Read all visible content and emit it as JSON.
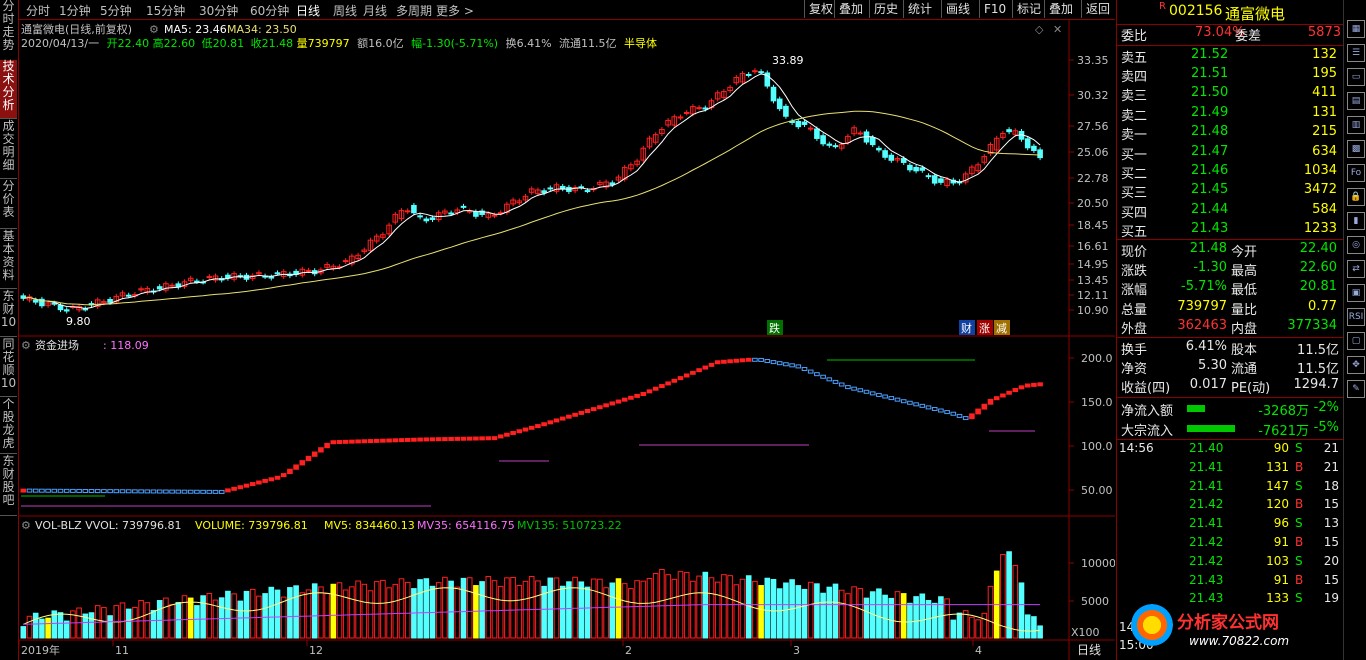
{
  "left_tabs": [
    "分时走势",
    "技术分析",
    "成交明细",
    "分价表",
    "基本资料",
    "东财10",
    "同花顺10",
    "个股龙虎",
    "东财股吧"
  ],
  "toolbar": {
    "periods": [
      "分时",
      "1分钟",
      "5分钟",
      "15分钟",
      "30分钟",
      "60分钟",
      "日线",
      "周线",
      "月线",
      "多周期",
      "更多 >"
    ],
    "selected": "日线",
    "right_buttons": [
      "复权",
      "叠加",
      "历史",
      "统计",
      "画线",
      "F10",
      "标记",
      "叠加",
      "返回"
    ]
  },
  "main_chart": {
    "title": "通富微电(日线,前复权)",
    "ma5": "MA5: 23.46",
    "ma34": "MA34: 23.50",
    "info_line": {
      "date": "2020/04/13/一",
      "open": "开22.40",
      "high": "高22.60",
      "low": "低20.81",
      "close": "收21.48",
      "volume": "量739797",
      "amount": "额16.0亿",
      "change": "幅-1.30(-5.71%)",
      "turnover": "换6.41%",
      "float": "流通11.5亿",
      "industry": "半导体"
    },
    "high_label": "33.89",
    "low_label": "9.80",
    "y_ticks": [
      "33.35",
      "30.32",
      "27.56",
      "25.06",
      "22.78",
      "20.50",
      "18.45",
      "16.61",
      "14.95",
      "13.45",
      "12.11",
      "10.90"
    ],
    "markers": [
      "跌",
      "财",
      "涨",
      "减"
    ]
  },
  "fund_chart": {
    "title": "资金进场",
    "value": ": 118.09",
    "y_ticks": [
      "200.0",
      "150.0",
      "100.0",
      "50.00"
    ]
  },
  "vol_chart": {
    "title": "VOL-BLZ VVOL: 739796.81",
    "volume": "VOLUME: 739796.81",
    "mv5": "MV5: 834460.13",
    "mv35": "MV35: 654116.75",
    "mv135": "MV135: 510723.22",
    "y_ticks": [
      "10000",
      "5000"
    ],
    "unit": "X100"
  },
  "x_axis": {
    "labels": [
      "2019年",
      "11",
      "12",
      "2",
      "3",
      "4"
    ],
    "period": "日线"
  },
  "quote": {
    "flag": "R",
    "code": "002156",
    "name": "通富微电",
    "weibi_label": "委比",
    "weibi": "73.04%",
    "weicha_label": "委差",
    "weicha": "5873",
    "sell": [
      {
        "label": "卖五",
        "price": "21.52",
        "vol": "132"
      },
      {
        "label": "卖四",
        "price": "21.51",
        "vol": "195"
      },
      {
        "label": "卖三",
        "price": "21.50",
        "vol": "411"
      },
      {
        "label": "卖二",
        "price": "21.49",
        "vol": "131"
      },
      {
        "label": "卖一",
        "price": "21.48",
        "vol": "215"
      }
    ],
    "buy": [
      {
        "label": "买一",
        "price": "21.47",
        "vol": "634"
      },
      {
        "label": "买二",
        "price": "21.46",
        "vol": "1034"
      },
      {
        "label": "买三",
        "price": "21.45",
        "vol": "3472"
      },
      {
        "label": "买四",
        "price": "21.44",
        "vol": "584"
      },
      {
        "label": "买五",
        "price": "21.43",
        "vol": "1233"
      }
    ],
    "stats": [
      {
        "l1": "现价",
        "v1": "21.48",
        "c1": "green",
        "l2": "今开",
        "v2": "22.40",
        "c2": "green"
      },
      {
        "l1": "涨跌",
        "v1": "-1.30",
        "c1": "green",
        "l2": "最高",
        "v2": "22.60",
        "c2": "green"
      },
      {
        "l1": "涨幅",
        "v1": "-5.71%",
        "c1": "green",
        "l2": "最低",
        "v2": "20.81",
        "c2": "green"
      },
      {
        "l1": "总量",
        "v1": "739797",
        "c1": "yellow",
        "l2": "量比",
        "v2": "0.77",
        "c2": "yellow"
      },
      {
        "l1": "外盘",
        "v1": "362463",
        "c1": "red",
        "l2": "内盘",
        "v2": "377334",
        "c2": "green"
      }
    ],
    "stats2": [
      {
        "l1": "换手",
        "v1": "6.41%",
        "c1": "white",
        "l2": "股本",
        "v2": "11.5亿",
        "c2": "white"
      },
      {
        "l1": "净资",
        "v1": "5.30",
        "c1": "white",
        "l2": "流通",
        "v2": "11.5亿",
        "c2": "white"
      },
      {
        "l1": "收益(四)",
        "v1": "0.017",
        "c1": "white",
        "l2": "PE(动)",
        "v2": "1294.7",
        "c2": "white"
      }
    ],
    "flows": [
      {
        "label": "净流入额",
        "value": "-3268万",
        "pct": "-2%"
      },
      {
        "label": "大宗流入",
        "value": "-7621万",
        "pct": "-5%"
      }
    ],
    "ticks": [
      {
        "time": "14:56",
        "price": "21.40",
        "vol": "90",
        "bs": "S",
        "n": "21"
      },
      {
        "time": "",
        "price": "21.41",
        "vol": "131",
        "bs": "B",
        "n": "21"
      },
      {
        "time": "",
        "price": "21.41",
        "vol": "147",
        "bs": "S",
        "n": "18"
      },
      {
        "time": "",
        "price": "21.42",
        "vol": "120",
        "bs": "B",
        "n": "15"
      },
      {
        "time": "",
        "price": "21.41",
        "vol": "96",
        "bs": "S",
        "n": "13"
      },
      {
        "time": "",
        "price": "21.42",
        "vol": "91",
        "bs": "B",
        "n": "15"
      },
      {
        "time": "",
        "price": "21.42",
        "vol": "103",
        "bs": "S",
        "n": "20"
      },
      {
        "time": "",
        "price": "21.43",
        "vol": "91",
        "bs": "B",
        "n": "15"
      },
      {
        "time": "",
        "price": "21.43",
        "vol": "133",
        "bs": "S",
        "n": "19"
      },
      {
        "time": "14:57",
        "price": "",
        "vol": "",
        "bs": "",
        "n": ""
      },
      {
        "time": "15:00",
        "price": "",
        "vol": "",
        "bs": "",
        "n": ""
      }
    ]
  },
  "watermark": {
    "cn": "分析家公式网",
    "url": "www.70822.com"
  },
  "colors": {
    "up": "#ff2020",
    "down": "#54ffff",
    "accent": "#8b0000",
    "ma5": "#ffffff",
    "ma34": "#e8e070"
  },
  "right_icons": [
    "grid-icon",
    "list-icon",
    "window-icon",
    "book-icon",
    "table-icon",
    "chart-icon",
    "f10-icon",
    "lock-icon",
    "bars-icon",
    "compass-icon",
    "arrows-icon",
    "layers-icon",
    "rsi-icon",
    "expand-icon",
    "move-icon",
    "pencil-icon"
  ]
}
